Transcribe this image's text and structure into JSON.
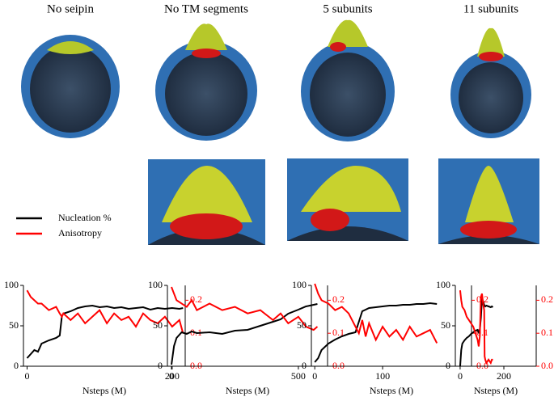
{
  "chart_data": [
    {
      "type": "line",
      "title": "No seipin",
      "xlabel": "Nsteps (M)",
      "x": [
        0,
        5,
        10,
        15,
        20,
        30,
        40,
        45,
        48,
        50,
        60,
        70,
        80,
        90,
        100,
        110,
        120,
        130,
        140,
        150,
        160,
        170,
        180,
        190,
        200,
        210,
        215
      ],
      "series": [
        {
          "name": "Nucleation %",
          "color": "#000000",
          "values": [
            10,
            15,
            20,
            18,
            28,
            32,
            35,
            38,
            62,
            65,
            68,
            72,
            74,
            75,
            73,
            74,
            72,
            73,
            71,
            72,
            73,
            70,
            72,
            71,
            72,
            71,
            72
          ]
        },
        {
          "name": "Anisotropy",
          "color": "#ff0000",
          "axis": "y2",
          "values": [
            0.23,
            0.21,
            0.2,
            0.19,
            0.19,
            0.17,
            0.18,
            0.16,
            0.15,
            0.16,
            0.14,
            0.16,
            0.13,
            0.15,
            0.17,
            0.13,
            0.16,
            0.14,
            0.15,
            0.12,
            0.16,
            0.14,
            0.13,
            0.15,
            0.12,
            0.14,
            0.1
          ]
        }
      ],
      "xlim": [
        -5,
        218
      ],
      "xticks": [
        0,
        200
      ],
      "ylim": [
        0,
        100
      ],
      "yticks": [
        0,
        50,
        100
      ],
      "y2lim": [
        0,
        0.245
      ],
      "y2ticks": [
        {
          "value": 0,
          "label": "0.0"
        },
        0.1,
        0.2
      ],
      "y2color": "#ff0000"
    },
    {
      "type": "line",
      "title": "No TM segments",
      "xlabel": "Nsteps (M)",
      "x": [
        0,
        10,
        20,
        40,
        60,
        80,
        100,
        150,
        200,
        250,
        300,
        350,
        400,
        430,
        460,
        500,
        530,
        560,
        575
      ],
      "series": [
        {
          "name": "Nucleation %",
          "color": "#000000",
          "values": [
            2,
            25,
            35,
            42,
            40,
            43,
            41,
            42,
            40,
            44,
            45,
            50,
            55,
            58,
            65,
            70,
            74,
            76,
            77
          ]
        },
        {
          "name": "Anisotropy",
          "color": "#ff0000",
          "axis": "y2",
          "values": [
            0.24,
            0.22,
            0.2,
            0.19,
            0.18,
            0.2,
            0.17,
            0.19,
            0.17,
            0.18,
            0.16,
            0.17,
            0.14,
            0.16,
            0.13,
            0.15,
            0.12,
            0.11,
            0.12
          ]
        }
      ],
      "xlim": [
        -16,
        615
      ],
      "xticks": [
        0,
        500
      ],
      "ylim": [
        0,
        100
      ],
      "yticks": [
        0,
        50,
        100
      ],
      "y2lim": [
        0,
        0.245
      ],
      "y2ticks": [
        {
          "value": 0,
          "label": "0.0"
        },
        0.1,
        0.2
      ],
      "y2color": "#ff0000"
    },
    {
      "type": "line",
      "title": "5 subunits",
      "xlabel": "Nsteps (M)",
      "x": [
        0,
        5,
        10,
        20,
        30,
        40,
        50,
        60,
        65,
        70,
        75,
        80,
        90,
        100,
        110,
        120,
        130,
        140,
        150,
        160,
        170,
        180
      ],
      "series": [
        {
          "name": "Nucleation %",
          "color": "#000000",
          "values": [
            5,
            10,
            20,
            28,
            33,
            37,
            40,
            42,
            55,
            68,
            70,
            72,
            73,
            74,
            75,
            75,
            76,
            76,
            77,
            77,
            78,
            77
          ]
        },
        {
          "name": "Anisotropy",
          "color": "#ff0000",
          "axis": "y2",
          "values": [
            0.25,
            0.22,
            0.2,
            0.19,
            0.17,
            0.18,
            0.16,
            0.12,
            0.1,
            0.14,
            0.09,
            0.13,
            0.08,
            0.12,
            0.09,
            0.11,
            0.08,
            0.12,
            0.09,
            0.1,
            0.11,
            0.07
          ]
        }
      ],
      "xlim": [
        -5,
        231
      ],
      "xticks": [
        0,
        100
      ],
      "ylim": [
        0,
        100
      ],
      "yticks": [
        0,
        50,
        100
      ],
      "y2lim": [
        0,
        0.245
      ],
      "y2ticks": [
        {
          "value": 0,
          "label": "0.0"
        },
        0.1,
        0.2
      ],
      "y2color": "#ff0000"
    },
    {
      "type": "line",
      "title": "11 subunits",
      "xlabel": "Nsteps (M)",
      "x": [
        0,
        5,
        10,
        20,
        30,
        40,
        50,
        60,
        70,
        80,
        85,
        90,
        95,
        100,
        105,
        110,
        112,
        115,
        120,
        130,
        140,
        145,
        150
      ],
      "series": [
        {
          "name": "Nucleation %",
          "color": "#000000",
          "values": [
            0,
            20,
            28,
            32,
            35,
            37,
            40,
            42,
            44,
            45,
            42,
            45,
            60,
            84,
            80,
            76,
            75,
            74,
            75,
            74,
            73,
            74,
            73
          ]
        },
        {
          "name": "Anisotropy",
          "color": "#ff0000",
          "axis": "y2",
          "values": [
            0.23,
            0.2,
            0.18,
            0.17,
            0.15,
            0.14,
            0.13,
            0.12,
            0.1,
            0.08,
            0.06,
            0.09,
            0.21,
            0.22,
            0.19,
            0.17,
            0.03,
            0.02,
            0.01,
            0.02,
            0.01,
            0.02,
            0.02
          ]
        }
      ],
      "xlim": [
        -22,
        348
      ],
      "xticks": [
        0,
        200
      ],
      "ylim": [
        0,
        100
      ],
      "yticks": [
        0,
        50,
        100
      ],
      "y2lim": [
        0,
        0.245
      ],
      "y2ticks": [
        {
          "value": 0,
          "label": "0.0"
        },
        0.1,
        0.2
      ],
      "y2color": "#ff0000"
    }
  ]
}
